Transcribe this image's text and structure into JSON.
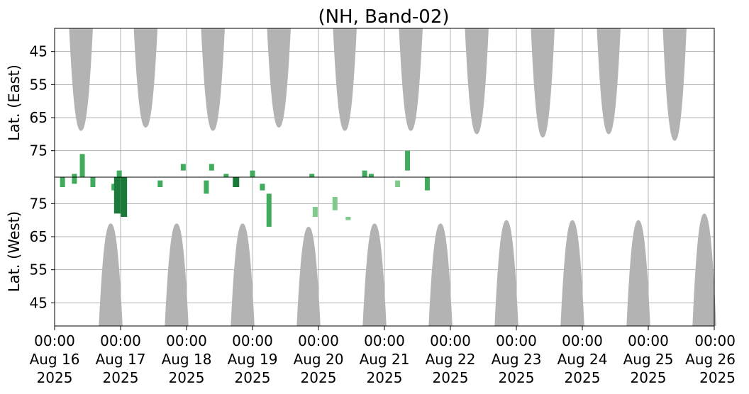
{
  "chart_data": {
    "type": "heatmap",
    "title": "(NH, Band-02)",
    "colors": {
      "night_mask": "#b3b3b3",
      "activity_light": "#7fc98b",
      "activity_mid": "#41ab5d",
      "activity_dark": "#1a7a3a",
      "grid": "#b0b0b0"
    },
    "x_ticks": [
      {
        "time": "00:00",
        "date": "Aug 16",
        "year": "2025"
      },
      {
        "time": "00:00",
        "date": "Aug 17",
        "year": "2025"
      },
      {
        "time": "00:00",
        "date": "Aug 18",
        "year": "2025"
      },
      {
        "time": "00:00",
        "date": "Aug 19",
        "year": "2025"
      },
      {
        "time": "00:00",
        "date": "Aug 20",
        "year": "2025"
      },
      {
        "time": "00:00",
        "date": "Aug 21",
        "year": "2025"
      },
      {
        "time": "00:00",
        "date": "Aug 22",
        "year": "2025"
      },
      {
        "time": "00:00",
        "date": "Aug 23",
        "year": "2025"
      },
      {
        "time": "00:00",
        "date": "Aug 24",
        "year": "2025"
      },
      {
        "time": "00:00",
        "date": "Aug 25",
        "year": "2025"
      },
      {
        "time": "00:00",
        "date": "Aug 26",
        "year": "2025"
      }
    ],
    "x_range": [
      "2025-08-16 00:00",
      "2025-08-26 00:00"
    ],
    "panels": [
      {
        "name": "east",
        "ylabel": "Lat. (East)",
        "ylim": [
          38,
          83
        ],
        "y_ticks": [
          45,
          55,
          65,
          75
        ],
        "night_regions": [
          {
            "center_day": 0.4,
            "half_width_day": 0.18,
            "min_lat": 69
          },
          {
            "center_day": 1.38,
            "half_width_day": 0.18,
            "min_lat": 68
          },
          {
            "center_day": 2.4,
            "half_width_day": 0.18,
            "min_lat": 69
          },
          {
            "center_day": 3.4,
            "half_width_day": 0.18,
            "min_lat": 68
          },
          {
            "center_day": 4.4,
            "half_width_day": 0.18,
            "min_lat": 69
          },
          {
            "center_day": 5.4,
            "half_width_day": 0.18,
            "min_lat": 69
          },
          {
            "center_day": 6.4,
            "half_width_day": 0.18,
            "min_lat": 70
          },
          {
            "center_day": 7.4,
            "half_width_day": 0.18,
            "min_lat": 71
          },
          {
            "center_day": 8.4,
            "half_width_day": 0.18,
            "min_lat": 70
          },
          {
            "center_day": 9.4,
            "half_width_day": 0.18,
            "min_lat": 72
          }
        ],
        "activity": [
          {
            "day": 0.42,
            "lat_low": 76,
            "lat_high": 83,
            "level": "mid"
          },
          {
            "day": 0.3,
            "lat_low": 82,
            "lat_high": 83,
            "level": "mid"
          },
          {
            "day": 0.98,
            "lat_low": 81,
            "lat_high": 83,
            "level": "mid"
          },
          {
            "day": 1.95,
            "lat_low": 79,
            "lat_high": 81,
            "level": "mid"
          },
          {
            "day": 2.38,
            "lat_low": 79,
            "lat_high": 81,
            "level": "mid"
          },
          {
            "day": 2.6,
            "lat_low": 82,
            "lat_high": 83,
            "level": "mid"
          },
          {
            "day": 3.0,
            "lat_low": 81,
            "lat_high": 83,
            "level": "mid"
          },
          {
            "day": 3.9,
            "lat_low": 82,
            "lat_high": 83,
            "level": "mid"
          },
          {
            "day": 4.7,
            "lat_low": 81,
            "lat_high": 83,
            "level": "mid"
          },
          {
            "day": 4.8,
            "lat_low": 82,
            "lat_high": 83,
            "level": "mid"
          },
          {
            "day": 5.35,
            "lat_low": 75,
            "lat_high": 81,
            "level": "mid"
          }
        ]
      },
      {
        "name": "west",
        "ylabel": "Lat. (West)",
        "ylim": [
          38,
          83
        ],
        "y_ticks": [
          45,
          55,
          65,
          75
        ],
        "night_regions": [
          {
            "center_day": 0.85,
            "half_width_day": 0.18,
            "min_lat": 69
          },
          {
            "center_day": 1.85,
            "half_width_day": 0.18,
            "min_lat": 69
          },
          {
            "center_day": 2.85,
            "half_width_day": 0.18,
            "min_lat": 69
          },
          {
            "center_day": 3.85,
            "half_width_day": 0.18,
            "min_lat": 68
          },
          {
            "center_day": 4.85,
            "half_width_day": 0.18,
            "min_lat": 69
          },
          {
            "center_day": 5.85,
            "half_width_day": 0.18,
            "min_lat": 69
          },
          {
            "center_day": 6.85,
            "half_width_day": 0.18,
            "min_lat": 70
          },
          {
            "center_day": 7.85,
            "half_width_day": 0.18,
            "min_lat": 70
          },
          {
            "center_day": 8.85,
            "half_width_day": 0.18,
            "min_lat": 70
          },
          {
            "center_day": 9.85,
            "half_width_day": 0.18,
            "min_lat": 72
          }
        ],
        "activity": [
          {
            "day": 0.12,
            "lat_low": 80,
            "lat_high": 83,
            "level": "mid"
          },
          {
            "day": 0.3,
            "lat_low": 81,
            "lat_high": 83,
            "level": "mid"
          },
          {
            "day": 0.58,
            "lat_low": 80,
            "lat_high": 83,
            "level": "mid"
          },
          {
            "day": 0.9,
            "lat_low": 79,
            "lat_high": 81,
            "level": "mid"
          },
          {
            "day": 0.95,
            "lat_low": 72,
            "lat_high": 83,
            "level": "dark"
          },
          {
            "day": 1.05,
            "lat_low": 71,
            "lat_high": 83,
            "level": "dark"
          },
          {
            "day": 1.6,
            "lat_low": 80,
            "lat_high": 82,
            "level": "mid"
          },
          {
            "day": 2.3,
            "lat_low": 78,
            "lat_high": 82,
            "level": "mid"
          },
          {
            "day": 2.75,
            "lat_low": 80,
            "lat_high": 83,
            "level": "dark"
          },
          {
            "day": 3.15,
            "lat_low": 79,
            "lat_high": 81,
            "level": "mid"
          },
          {
            "day": 3.25,
            "lat_low": 68,
            "lat_high": 78,
            "level": "mid"
          },
          {
            "day": 3.95,
            "lat_low": 71,
            "lat_high": 74,
            "level": "light"
          },
          {
            "day": 4.25,
            "lat_low": 73,
            "lat_high": 77,
            "level": "light"
          },
          {
            "day": 4.45,
            "lat_low": 70,
            "lat_high": 71,
            "level": "light"
          },
          {
            "day": 5.2,
            "lat_low": 80,
            "lat_high": 82,
            "level": "light"
          },
          {
            "day": 5.65,
            "lat_low": 79,
            "lat_high": 83,
            "level": "mid"
          }
        ]
      }
    ]
  }
}
